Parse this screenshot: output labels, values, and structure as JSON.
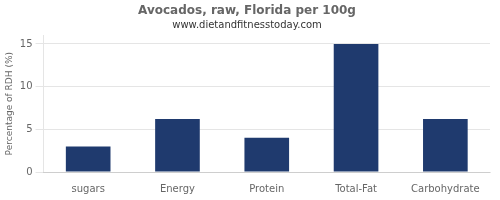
{
  "chart_data": {
    "type": "bar",
    "title": "Avocados, raw, Florida per 100g",
    "subtitle": "www.dietandfitnesstoday.com",
    "categories": [
      "sugars",
      "Energy",
      "Protein",
      "Total-Fat",
      "Carbohydrate"
    ],
    "values": [
      3.0,
      6.2,
      4.0,
      15.0,
      6.2
    ],
    "color": "#1F3A6E",
    "ylabel": "Percentage of RDH (%)",
    "ylim": [
      0,
      16
    ],
    "yticks": [
      0,
      5,
      10,
      15
    ],
    "grid": true
  }
}
